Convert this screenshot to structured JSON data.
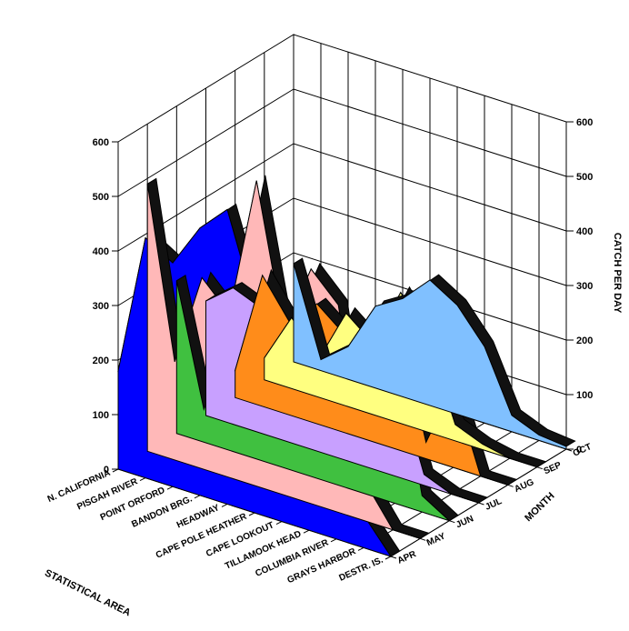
{
  "chart_data": {
    "type": "area",
    "subtype": "3d-area",
    "x_axis_title": "STATISTICAL AREA",
    "z_axis_title": "MONTH",
    "y_axis_title": "CATCH PER DAY",
    "ylim": [
      0,
      600
    ],
    "y_ticks": [
      "0",
      "100",
      "200",
      "300",
      "400",
      "500",
      "600"
    ],
    "categories": [
      "N. CALIFORNIA",
      "PISGAH RIVER",
      "POINT ORFORD",
      "BANDON BRG.",
      "HEADWAY",
      "CAPE POLE HEATHER",
      "CAPE LOOKOUT",
      "TILLAMOOK HEAD",
      "COLUMBIA RIVER",
      "GRAYS HARBOR",
      "DESTR. IS."
    ],
    "series": [
      {
        "name": "OCT",
        "color": "#80c0ff",
        "values": [
          180,
          20,
          60,
          150,
          180,
          230,
          200,
          140,
          30,
          10,
          5
        ]
      },
      {
        "name": "SEP",
        "color": "#ffff80",
        "values": [
          40,
          130,
          70,
          170,
          130,
          240,
          170,
          30,
          10,
          0,
          0
        ]
      },
      {
        "name": "AUG",
        "color": "#ff8c1a",
        "values": [
          50,
          240,
          170,
          220,
          180,
          190,
          230,
          30,
          150,
          0,
          0
        ]
      },
      {
        "name": "JUL",
        "color": "#c8a0ff",
        "values": [
          210,
          250,
          230,
          230,
          190,
          220,
          210,
          180,
          20,
          0,
          0
        ]
      },
      {
        "name": "JUN",
        "color": "#40c040",
        "values": [
          280,
          60,
          200,
          160,
          240,
          230,
          290,
          230,
          300,
          30,
          0
        ]
      },
      {
        "name": "MAY",
        "color": "#ffb8b8",
        "values": [
          490,
          180,
          350,
          300,
          560,
          300,
          430,
          380,
          70,
          0,
          0
        ]
      },
      {
        "name": "APR",
        "color": "#0000ff",
        "values": [
          180,
          440,
          410,
          490,
          540,
          380,
          350,
          300,
          290,
          60,
          0
        ]
      }
    ]
  }
}
